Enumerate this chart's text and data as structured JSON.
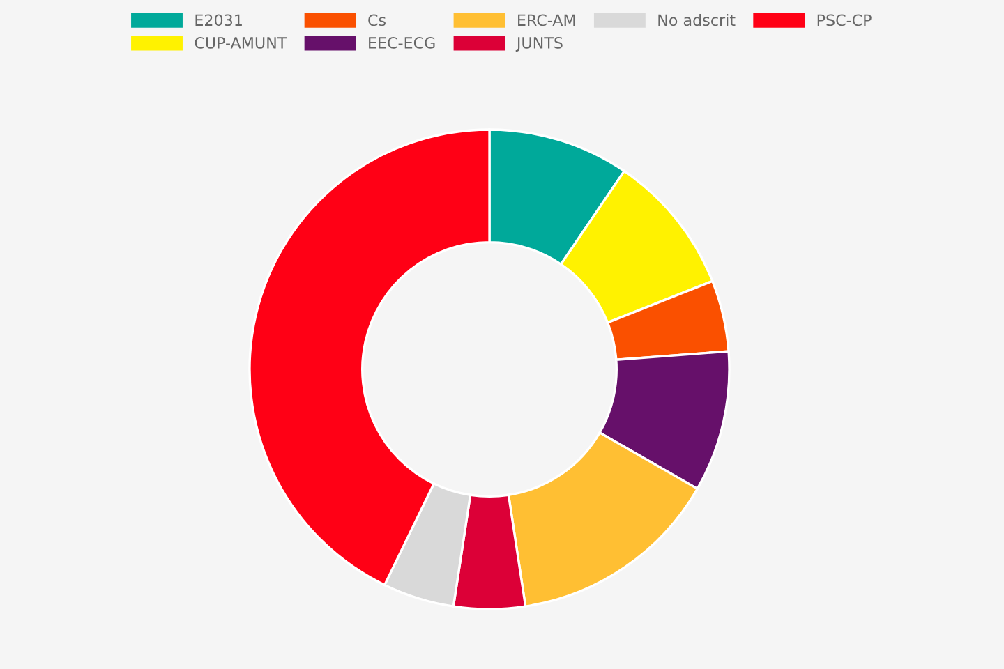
{
  "chart_data": {
    "type": "donut",
    "categories": [
      "E2031",
      "CUP-AMUNT",
      "Cs",
      "EEC-ECG",
      "ERC-AM",
      "JUNTS",
      "No adscrit",
      "PSC-CP"
    ],
    "values": [
      9.5,
      9.5,
      4.8,
      9.5,
      14.3,
      4.8,
      4.8,
      42.8
    ],
    "colors": [
      "#00a99a",
      "#fff200",
      "#fa5000",
      "#66106a",
      "#ffbf33",
      "#dc0037",
      "#d9d9d9",
      "#ff0015"
    ],
    "legend": "top"
  }
}
